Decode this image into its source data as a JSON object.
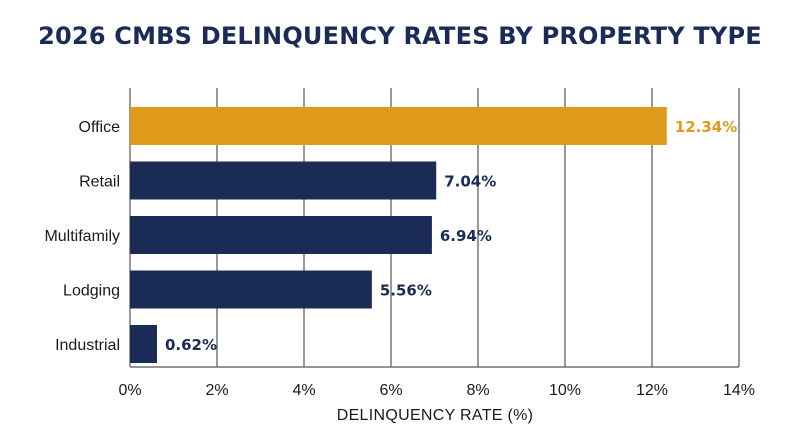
{
  "chart_data": {
    "type": "bar",
    "orientation": "horizontal",
    "title": "2026 CMBS DELINQUENCY RATES BY PROPERTY TYPE",
    "xlabel": "DELINQUENCY RATE (%)",
    "ylabel": "",
    "categories": [
      "Office",
      "Retail",
      "Multifamily",
      "Lodging",
      "Industrial"
    ],
    "values": [
      12.34,
      7.04,
      6.94,
      5.56,
      0.62
    ],
    "value_labels": [
      "12.34%",
      "7.04%",
      "6.94%",
      "5.56%",
      "0.62%"
    ],
    "xlim": [
      0,
      14
    ],
    "x_ticks": [
      0,
      2,
      4,
      6,
      8,
      10,
      12,
      14
    ],
    "x_tick_labels": [
      "0%",
      "2%",
      "4%",
      "6%",
      "8%",
      "10%",
      "12%",
      "14%"
    ],
    "grid": "vertical",
    "colors": {
      "highlight": "#e09b1b",
      "default": "#1a2b55",
      "grid": "#555555",
      "text": "#1a1a1a"
    },
    "highlight_category": "Office"
  }
}
